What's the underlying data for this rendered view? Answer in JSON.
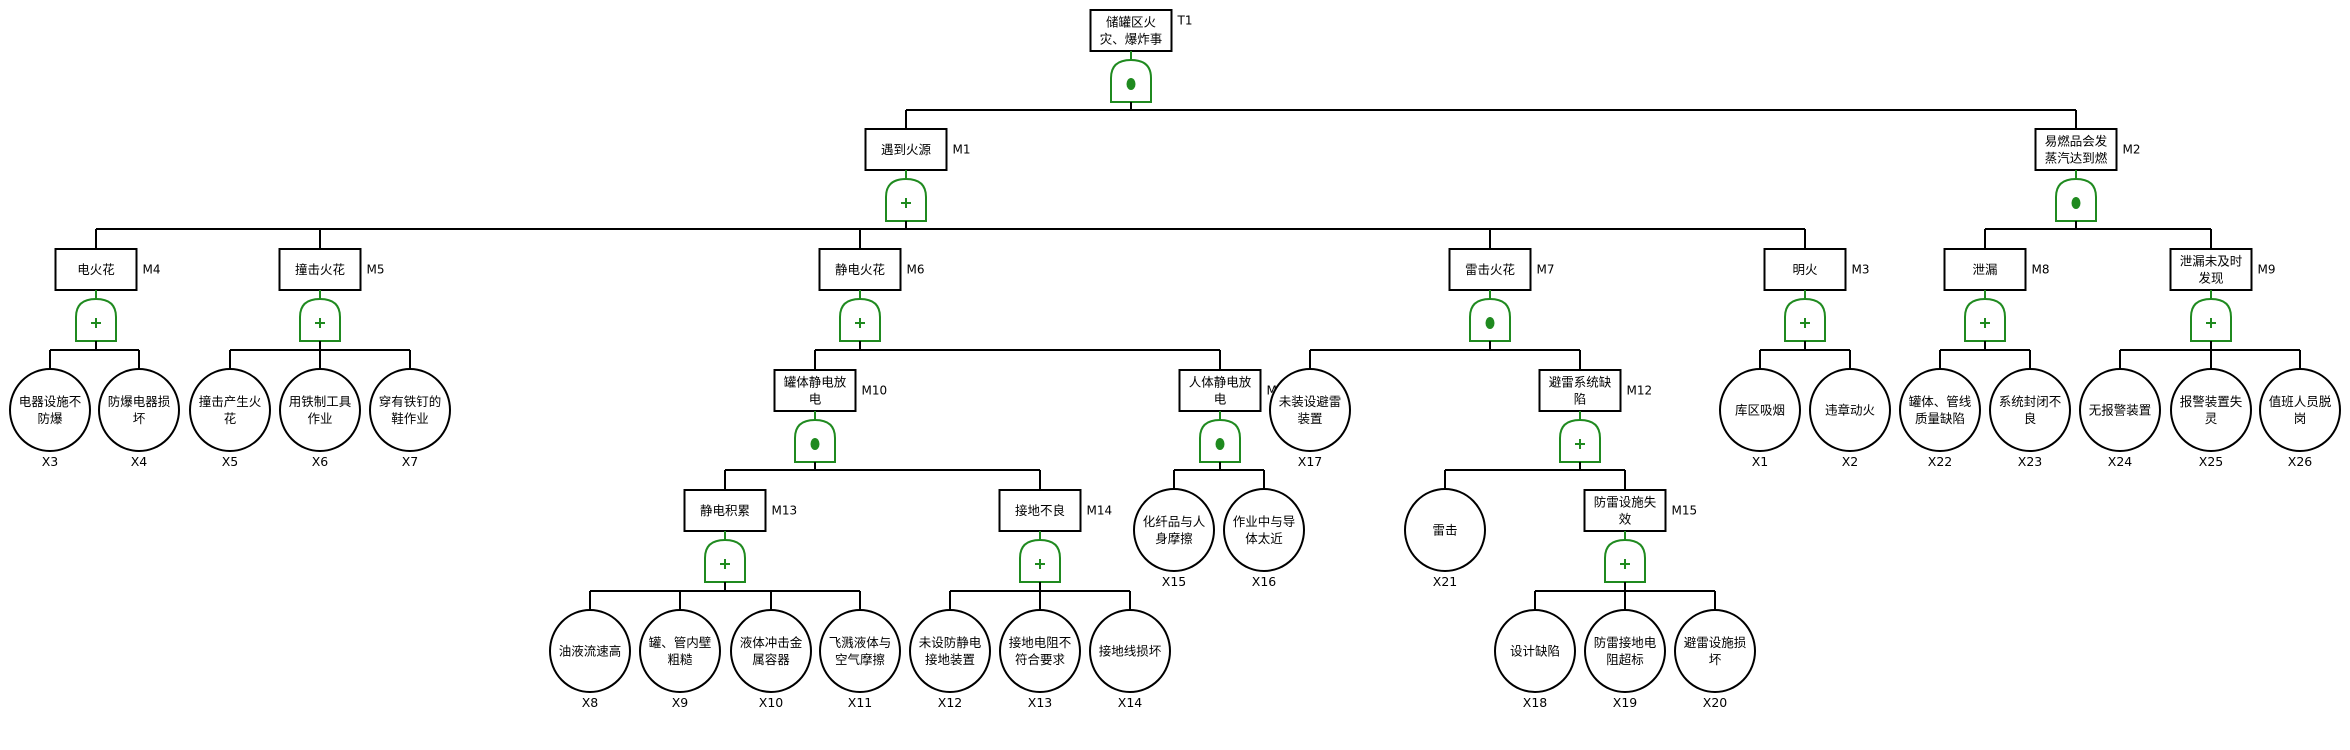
{
  "colors": {
    "gate": "#1f8a1f",
    "line": "#000000"
  },
  "tree": {
    "id": "T1",
    "lines": [
      "储罐区火",
      "灾、爆炸事"
    ],
    "gate": "and",
    "children": [
      {
        "id": "M1",
        "lines": [
          "遇到火源"
        ],
        "gate": "or",
        "children": [
          {
            "id": "M4",
            "lines": [
              "电火花"
            ],
            "gate": "or",
            "children": [
              {
                "id": "X3",
                "lines": [
                  "电器设施不",
                  "防爆"
                ]
              },
              {
                "id": "X4",
                "lines": [
                  "防爆电器损",
                  "坏"
                ]
              }
            ]
          },
          {
            "id": "M5",
            "lines": [
              "撞击火花"
            ],
            "gate": "or",
            "children": [
              {
                "id": "X5",
                "lines": [
                  "撞击产生火",
                  "花"
                ]
              },
              {
                "id": "X6",
                "lines": [
                  "用铁制工具",
                  "作业"
                ]
              },
              {
                "id": "X7",
                "lines": [
                  "穿有铁钉的",
                  "鞋作业"
                ]
              }
            ]
          },
          {
            "id": "M6",
            "lines": [
              "静电火花"
            ],
            "gate": "or",
            "children": [
              {
                "id": "M10",
                "lines": [
                  "罐体静电放",
                  "电"
                ],
                "gate": "and",
                "children": [
                  {
                    "id": "M13",
                    "lines": [
                      "静电积累"
                    ],
                    "gate": "or",
                    "children": [
                      {
                        "id": "X8",
                        "lines": [
                          "油液流速高"
                        ]
                      },
                      {
                        "id": "X9",
                        "lines": [
                          "罐、管内壁",
                          "粗糙"
                        ]
                      },
                      {
                        "id": "X10",
                        "lines": [
                          "液体冲击金",
                          "属容器"
                        ]
                      },
                      {
                        "id": "X11",
                        "lines": [
                          "飞溅液体与",
                          "空气摩擦"
                        ]
                      }
                    ]
                  },
                  {
                    "id": "M14",
                    "lines": [
                      "接地不良"
                    ],
                    "gate": "or",
                    "children": [
                      {
                        "id": "X12",
                        "lines": [
                          "未设防静电",
                          "接地装置"
                        ]
                      },
                      {
                        "id": "X13",
                        "lines": [
                          "接地电阻不",
                          "符合要求"
                        ]
                      },
                      {
                        "id": "X14",
                        "lines": [
                          "接地线损坏"
                        ]
                      }
                    ]
                  }
                ]
              },
              {
                "id": "M11",
                "lines": [
                  "人体静电放",
                  "电"
                ],
                "gate": "and",
                "children": [
                  {
                    "id": "X15",
                    "lines": [
                      "化纤品与人",
                      "身摩擦"
                    ]
                  },
                  {
                    "id": "X16",
                    "lines": [
                      "作业中与导",
                      "体太近"
                    ]
                  }
                ]
              }
            ]
          },
          {
            "id": "M7",
            "lines": [
              "雷击火花"
            ],
            "gate": "and",
            "children": [
              {
                "id": "X17",
                "lines": [
                  "未装设避雷",
                  "装置"
                ]
              },
              {
                "id": "M12",
                "lines": [
                  "避雷系统缺",
                  "陷"
                ],
                "gate": "or",
                "children": [
                  {
                    "id": "X21",
                    "lines": [
                      "雷击"
                    ]
                  },
                  {
                    "id": "M15",
                    "lines": [
                      "防雷设施失",
                      "效"
                    ],
                    "gate": "or",
                    "children": [
                      {
                        "id": "X18",
                        "lines": [
                          "设计缺陷"
                        ]
                      },
                      {
                        "id": "X19",
                        "lines": [
                          "防雷接地电",
                          "阻超标"
                        ]
                      },
                      {
                        "id": "X20",
                        "lines": [
                          "避雷设施损",
                          "坏"
                        ]
                      }
                    ]
                  }
                ]
              }
            ]
          },
          {
            "id": "M3",
            "lines": [
              "明火"
            ],
            "gate": "or",
            "children": [
              {
                "id": "X1",
                "lines": [
                  "库区吸烟"
                ]
              },
              {
                "id": "X2",
                "lines": [
                  "违章动火"
                ]
              }
            ]
          }
        ]
      },
      {
        "id": "M2",
        "lines": [
          "易燃品会发",
          "蒸汽达到燃"
        ],
        "gate": "and",
        "children": [
          {
            "id": "M8",
            "lines": [
              "泄漏"
            ],
            "gate": "or",
            "children": [
              {
                "id": "X22",
                "lines": [
                  "罐体、管线",
                  "质量缺陷"
                ]
              },
              {
                "id": "X23",
                "lines": [
                  "系统封闭不",
                  "良"
                ]
              }
            ]
          },
          {
            "id": "M9",
            "lines": [
              "泄漏未及时",
              "发现"
            ],
            "gate": "or",
            "children": [
              {
                "id": "X24",
                "lines": [
                  "无报警装置"
                ]
              },
              {
                "id": "X25",
                "lines": [
                  "报警装置失",
                  "灵"
                ]
              },
              {
                "id": "X26",
                "lines": [
                  "值班人员脱",
                  "岗"
                ]
              }
            ]
          }
        ]
      }
    ]
  }
}
